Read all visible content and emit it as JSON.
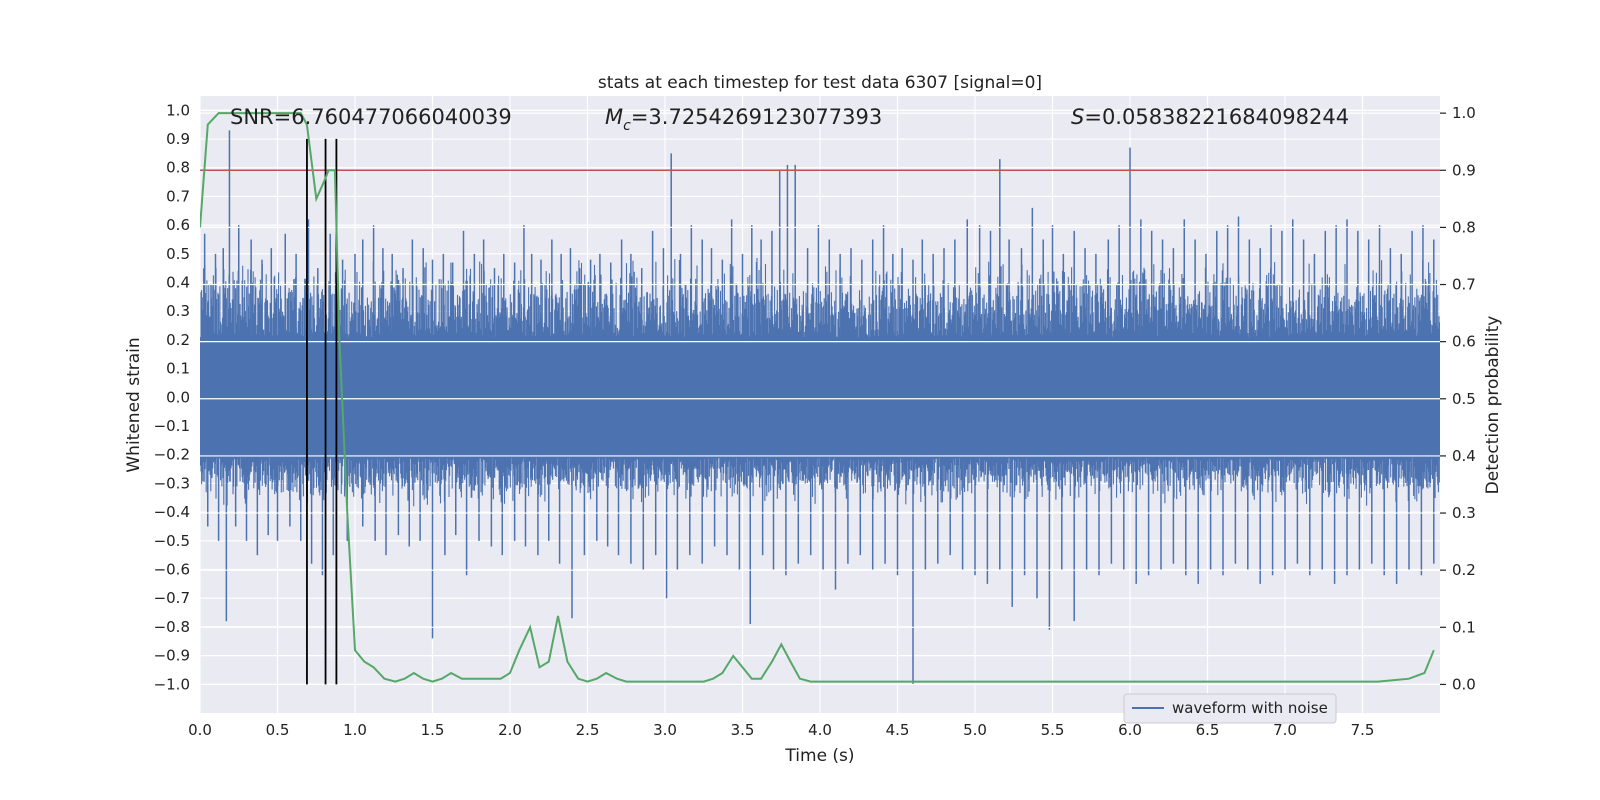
{
  "chart_data": {
    "type": "line",
    "title": "stats at each timestep for test data 6307 [signal=0]",
    "xlabel": "Time (s)",
    "ylabel_left": "Whitened strain",
    "ylabel_right": "Detection probability",
    "xlim": [
      0.0,
      8.0
    ],
    "ylim_left": [
      -1.1,
      1.05
    ],
    "ylim_right": [
      -0.05,
      1.03
    ],
    "x_ticks": [
      "0.0",
      "0.5",
      "1.0",
      "1.5",
      "2.0",
      "2.5",
      "3.0",
      "3.5",
      "4.0",
      "4.5",
      "5.0",
      "5.5",
      "6.0",
      "6.5",
      "7.0",
      "7.5"
    ],
    "left_ticks": [
      "1.0",
      "0.9",
      "0.8",
      "0.7",
      "0.6",
      "0.5",
      "0.4",
      "0.3",
      "0.2",
      "0.1",
      "0.0",
      "−0.1",
      "−0.2",
      "−0.3",
      "−0.4",
      "−0.5",
      "−0.6",
      "−0.7",
      "−0.8",
      "−0.9",
      "−1.0"
    ],
    "right_ticks": [
      "1.0",
      "0.9",
      "0.8",
      "0.7",
      "0.6",
      "0.5",
      "0.4",
      "0.3",
      "0.2",
      "0.1",
      "0.0"
    ],
    "grid": true,
    "legend": {
      "position": "bottom-right",
      "entries": [
        "waveform with noise"
      ]
    },
    "annotations": {
      "snr": "SNR=6.760477066040039",
      "mc_symbol": "M",
      "mc_subscript": "c",
      "mc_value": "=3.7254269123077393",
      "s_symbol": "S",
      "s_value": "=0.05838221684098244"
    },
    "threshold_right": 0.9,
    "vertical_lines_x": [
      0.69,
      0.81,
      0.88
    ],
    "series": [
      {
        "name": "waveform with noise",
        "role": "whitened strain (noise envelope)",
        "color": "#4c72b0",
        "dense_band": [
          -0.21,
          0.21
        ],
        "typical_envelope": [
          -0.38,
          0.5
        ],
        "peaks_x": [
          0.03,
          0.1,
          0.15,
          0.19,
          0.25,
          0.33,
          0.4,
          0.46,
          0.55,
          0.62,
          0.7,
          0.76,
          0.84,
          0.92,
          1.0,
          1.05,
          1.12,
          1.18,
          1.24,
          1.31,
          1.37,
          1.44,
          1.5,
          1.57,
          1.63,
          1.7,
          1.77,
          1.83,
          1.9,
          1.96,
          2.03,
          2.09,
          2.14,
          2.2,
          2.27,
          2.33,
          2.39,
          2.45,
          2.52,
          2.58,
          2.65,
          2.72,
          2.78,
          2.85,
          2.92,
          2.99,
          3.04,
          3.1,
          3.17,
          3.24,
          3.3,
          3.37,
          3.43,
          3.5,
          3.56,
          3.62,
          3.69,
          3.74,
          3.79,
          3.84,
          3.92,
          3.99,
          4.06,
          4.13,
          4.2,
          4.27,
          4.34,
          4.41,
          4.47,
          4.53,
          4.6,
          4.66,
          4.73,
          4.8,
          4.87,
          4.95,
          5.03,
          5.1,
          5.16,
          5.22,
          5.3,
          5.37,
          5.44,
          5.5,
          5.57,
          5.64,
          5.71,
          5.78,
          5.86,
          5.93,
          6.0,
          6.07,
          6.14,
          6.21,
          6.28,
          6.35,
          6.42,
          6.49,
          6.56,
          6.63,
          6.7,
          6.77,
          6.84,
          6.91,
          6.98,
          7.05,
          7.12,
          7.19,
          7.26,
          7.33,
          7.4,
          7.47,
          7.54,
          7.61,
          7.68,
          7.75,
          7.82,
          7.89,
          7.96
        ],
        "peaks_y": [
          0.57,
          0.5,
          0.52,
          0.93,
          0.6,
          0.55,
          0.48,
          0.52,
          0.57,
          0.5,
          0.62,
          0.45,
          0.57,
          0.48,
          0.5,
          0.55,
          0.6,
          0.52,
          0.5,
          0.45,
          0.55,
          0.52,
          0.48,
          0.5,
          0.47,
          0.58,
          0.5,
          0.55,
          0.45,
          0.5,
          0.47,
          0.6,
          0.5,
          0.48,
          0.55,
          0.5,
          0.52,
          0.45,
          0.48,
          0.5,
          0.47,
          0.55,
          0.5,
          0.45,
          0.58,
          0.52,
          0.85,
          0.5,
          0.6,
          0.55,
          0.52,
          0.48,
          0.62,
          0.5,
          0.6,
          0.55,
          0.58,
          0.79,
          0.81,
          0.81,
          0.52,
          0.6,
          0.55,
          0.5,
          0.52,
          0.48,
          0.55,
          0.6,
          0.5,
          0.52,
          0.48,
          0.55,
          0.5,
          0.52,
          0.55,
          0.62,
          0.6,
          0.58,
          0.83,
          0.55,
          0.52,
          0.66,
          0.55,
          0.6,
          0.5,
          0.58,
          0.52,
          0.5,
          0.55,
          0.6,
          0.87,
          0.62,
          0.58,
          0.55,
          0.52,
          0.62,
          0.55,
          0.5,
          0.58,
          0.6,
          0.63,
          0.55,
          0.52,
          0.6,
          0.58,
          0.62,
          0.55,
          0.5,
          0.58,
          0.6,
          0.62,
          0.58,
          0.55,
          0.6,
          0.52,
          0.5,
          0.58,
          0.6,
          0.55
        ],
        "troughs_x": [
          0.05,
          0.12,
          0.17,
          0.23,
          0.3,
          0.37,
          0.44,
          0.5,
          0.58,
          0.65,
          0.72,
          0.79,
          0.86,
          0.95,
          1.05,
          1.13,
          1.2,
          1.28,
          1.35,
          1.42,
          1.5,
          1.58,
          1.65,
          1.72,
          1.8,
          1.88,
          1.95,
          2.03,
          2.1,
          2.18,
          2.25,
          2.32,
          2.4,
          2.48,
          2.56,
          2.63,
          2.7,
          2.78,
          2.86,
          2.94,
          3.01,
          3.08,
          3.16,
          3.24,
          3.32,
          3.4,
          3.48,
          3.55,
          3.63,
          3.7,
          3.78,
          3.86,
          3.94,
          4.02,
          4.1,
          4.18,
          4.26,
          4.34,
          4.42,
          4.5,
          4.6,
          4.68,
          4.76,
          4.84,
          4.92,
          5.0,
          5.08,
          5.16,
          5.24,
          5.32,
          5.4,
          5.48,
          5.56,
          5.64,
          5.72,
          5.8,
          5.88,
          5.96,
          6.04,
          6.12,
          6.2,
          6.28,
          6.36,
          6.44,
          6.52,
          6.6,
          6.68,
          6.76,
          6.84,
          6.92,
          7.0,
          7.08,
          7.16,
          7.24,
          7.32,
          7.4,
          7.48,
          7.56,
          7.64,
          7.72,
          7.8,
          7.88,
          7.96
        ],
        "troughs_y": [
          -0.45,
          -0.5,
          -0.78,
          -0.45,
          -0.5,
          -0.55,
          -0.48,
          -0.5,
          -0.45,
          -0.5,
          -0.58,
          -0.62,
          -0.55,
          -0.5,
          -0.45,
          -0.5,
          -0.55,
          -0.48,
          -0.52,
          -0.5,
          -0.84,
          -0.55,
          -0.48,
          -0.62,
          -0.5,
          -0.52,
          -0.55,
          -0.5,
          -0.52,
          -0.55,
          -0.5,
          -0.58,
          -0.77,
          -0.55,
          -0.5,
          -0.52,
          -0.55,
          -0.58,
          -0.6,
          -0.55,
          -0.7,
          -0.6,
          -0.55,
          -0.58,
          -0.52,
          -0.55,
          -0.6,
          -0.79,
          -0.55,
          -0.6,
          -0.62,
          -0.58,
          -0.55,
          -0.6,
          -0.67,
          -0.58,
          -0.55,
          -0.6,
          -0.58,
          -0.62,
          -1.0,
          -0.6,
          -0.58,
          -0.55,
          -0.6,
          -0.62,
          -0.65,
          -0.6,
          -0.73,
          -0.62,
          -0.7,
          -0.81,
          -0.6,
          -0.78,
          -0.6,
          -0.62,
          -0.58,
          -0.6,
          -0.65,
          -0.62,
          -0.6,
          -0.58,
          -0.62,
          -0.65,
          -0.6,
          -0.62,
          -0.58,
          -0.6,
          -0.65,
          -0.62,
          -0.6,
          -0.58,
          -0.62,
          -0.6,
          -0.65,
          -0.62,
          -0.6,
          -0.58,
          -0.62,
          -0.65,
          -0.6,
          -0.62,
          -0.58
        ]
      },
      {
        "name": "detection probability",
        "axis": "right",
        "color": "#55a868",
        "x": [
          0.0,
          0.05,
          0.12,
          0.2,
          0.3,
          0.4,
          0.5,
          0.6,
          0.65,
          0.69,
          0.75,
          0.8,
          0.83,
          0.87,
          0.9,
          0.95,
          1.0,
          1.06,
          1.12,
          1.19,
          1.26,
          1.32,
          1.38,
          1.44,
          1.5,
          1.56,
          1.62,
          1.69,
          1.75,
          1.81,
          1.88,
          1.94,
          2.0,
          2.06,
          2.13,
          2.19,
          2.25,
          2.31,
          2.37,
          2.44,
          2.5,
          2.56,
          2.62,
          2.69,
          2.75,
          2.81,
          2.87,
          2.94,
          3.0,
          3.06,
          3.12,
          3.19,
          3.25,
          3.31,
          3.37,
          3.44,
          3.5,
          3.56,
          3.62,
          3.69,
          3.75,
          3.81,
          3.87,
          3.94,
          4.0,
          4.2,
          4.4,
          4.6,
          4.8,
          5.0,
          5.2,
          5.4,
          5.6,
          5.8,
          6.0,
          6.2,
          6.4,
          6.6,
          6.7,
          6.8,
          7.0,
          7.2,
          7.4,
          7.6,
          7.8,
          7.9,
          7.96
        ],
        "y": [
          0.8,
          0.98,
          1.0,
          1.0,
          1.0,
          1.0,
          1.0,
          1.0,
          1.0,
          0.98,
          0.85,
          0.88,
          0.9,
          0.9,
          0.6,
          0.3,
          0.06,
          0.04,
          0.03,
          0.01,
          0.005,
          0.01,
          0.02,
          0.01,
          0.005,
          0.01,
          0.02,
          0.01,
          0.01,
          0.01,
          0.01,
          0.01,
          0.02,
          0.06,
          0.1,
          0.03,
          0.04,
          0.12,
          0.04,
          0.01,
          0.005,
          0.01,
          0.02,
          0.01,
          0.005,
          0.005,
          0.005,
          0.005,
          0.005,
          0.005,
          0.005,
          0.005,
          0.005,
          0.01,
          0.02,
          0.05,
          0.03,
          0.01,
          0.01,
          0.04,
          0.07,
          0.04,
          0.01,
          0.005,
          0.005,
          0.005,
          0.005,
          0.005,
          0.005,
          0.005,
          0.005,
          0.005,
          0.005,
          0.005,
          0.005,
          0.005,
          0.005,
          0.005,
          0.005,
          0.005,
          0.005,
          0.005,
          0.005,
          0.005,
          0.01,
          0.02,
          0.06
        ]
      }
    ]
  }
}
